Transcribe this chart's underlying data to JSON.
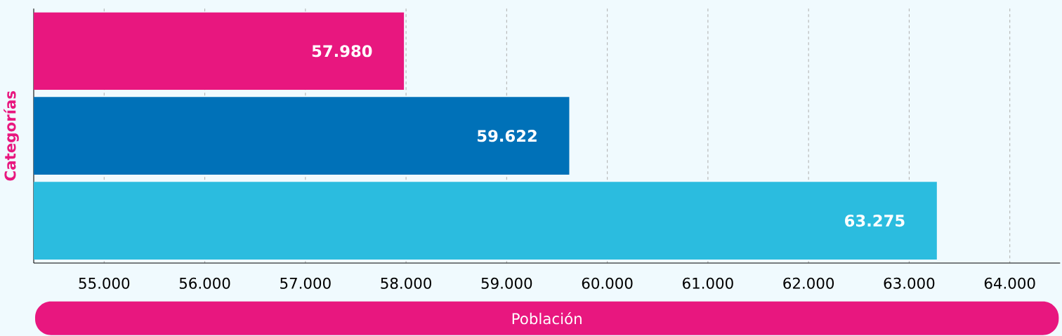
{
  "chart_data": {
    "type": "bar",
    "orientation": "horizontal",
    "xlabel": "Población",
    "ylabel": "Categorías",
    "categories": [
      null,
      null,
      null
    ],
    "values": [
      57980,
      59622,
      63275
    ],
    "colors": [
      "#e8177f",
      "#0071b8",
      "#2bbcdf"
    ],
    "value_labels": [
      "57.980",
      "59.622",
      "63.275"
    ],
    "xlim": [
      54300,
      64500
    ],
    "xticks": [
      {
        "value": 55000,
        "label": "55.000"
      },
      {
        "value": 56000,
        "label": "56.000"
      },
      {
        "value": 57000,
        "label": "57.000"
      },
      {
        "value": 58000,
        "label": "58.000"
      },
      {
        "value": 59000,
        "label": "59.000"
      },
      {
        "value": 60000,
        "label": "60.000"
      },
      {
        "value": 61000,
        "label": "61.000"
      },
      {
        "value": 62000,
        "label": "62.000"
      },
      {
        "value": 63000,
        "label": "63.000"
      },
      {
        "value": 64000,
        "label": "64.000"
      }
    ],
    "grid": "x"
  }
}
